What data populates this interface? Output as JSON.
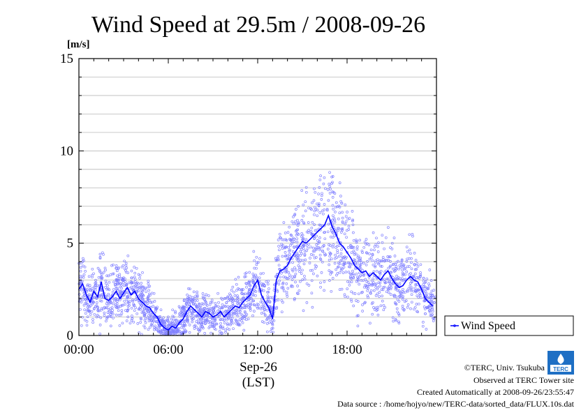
{
  "chart_data": {
    "type": "line",
    "title": "Wind Speed at 29.5m / 2008-09-26",
    "ylabel": "[m/s]",
    "ylim": [
      0,
      15
    ],
    "yticks": [
      0,
      5,
      10,
      15
    ],
    "xlim": [
      0,
      24
    ],
    "xticks": [
      {
        "value": 0,
        "label": "00:00"
      },
      {
        "value": 6,
        "label": "06:00"
      },
      {
        "value": 12,
        "label": "12:00"
      },
      {
        "value": 18,
        "label": "18:00"
      }
    ],
    "date_label": "Sep-26",
    "time_zone_label": "(LST)",
    "grid": true,
    "legend_position": "right",
    "series": [
      {
        "name": "Wind Speed",
        "color": "#0000ff",
        "scatter_color": "#8080ff",
        "x": [
          0.0,
          0.25,
          0.5,
          0.75,
          1.0,
          1.25,
          1.5,
          1.75,
          2.0,
          2.25,
          2.5,
          2.75,
          3.0,
          3.25,
          3.5,
          3.75,
          4.0,
          4.25,
          4.5,
          4.75,
          5.0,
          5.25,
          5.5,
          5.75,
          6.0,
          6.25,
          6.5,
          6.75,
          7.0,
          7.25,
          7.5,
          7.75,
          8.0,
          8.25,
          8.5,
          8.75,
          9.0,
          9.25,
          9.5,
          9.75,
          10.0,
          10.25,
          10.5,
          10.75,
          11.0,
          11.25,
          11.5,
          11.75,
          12.0,
          12.25,
          12.5,
          12.75,
          13.0,
          13.25,
          13.5,
          13.75,
          14.0,
          14.25,
          14.5,
          14.75,
          15.0,
          15.25,
          15.5,
          15.75,
          16.0,
          16.25,
          16.5,
          16.75,
          17.0,
          17.25,
          17.5,
          17.75,
          18.0,
          18.25,
          18.5,
          18.75,
          19.0,
          19.25,
          19.5,
          19.75,
          20.0,
          20.25,
          20.5,
          20.75,
          21.0,
          21.25,
          21.5,
          21.75,
          22.0,
          22.25,
          22.5,
          22.75,
          23.0,
          23.25,
          23.5,
          23.75
        ],
        "y": [
          2.5,
          2.8,
          2.2,
          1.8,
          2.4,
          2.1,
          2.9,
          2.0,
          1.9,
          2.1,
          2.4,
          2.0,
          2.3,
          2.6,
          2.2,
          2.4,
          2.0,
          1.8,
          1.6,
          1.5,
          1.2,
          1.0,
          0.6,
          0.4,
          0.3,
          0.5,
          0.4,
          0.7,
          0.9,
          1.3,
          1.6,
          1.4,
          1.2,
          1.0,
          1.3,
          1.2,
          1.0,
          1.1,
          1.3,
          1.0,
          1.2,
          1.4,
          1.6,
          1.5,
          1.8,
          2.0,
          2.2,
          2.7,
          3.0,
          2.2,
          1.8,
          1.5,
          0.9,
          3.0,
          3.5,
          3.6,
          3.8,
          4.2,
          4.5,
          4.8,
          5.1,
          5.0,
          5.2,
          5.4,
          5.6,
          5.8,
          6.0,
          6.5,
          5.9,
          5.5,
          5.0,
          4.8,
          4.5,
          4.2,
          3.8,
          3.6,
          3.4,
          3.5,
          3.2,
          3.4,
          3.2,
          3.0,
          3.3,
          3.5,
          3.1,
          2.8,
          2.6,
          2.7,
          3.0,
          3.2,
          3.0,
          2.9,
          2.5,
          2.0,
          1.8,
          1.6
        ]
      }
    ]
  },
  "legend": {
    "label": "Wind Speed"
  },
  "footer": {
    "copyright": "©TERC, Univ. Tsukuba",
    "observed": "Observed at TERC Tower site",
    "created": "Created Automatically at 2008-09-26/23:55:47",
    "source": "Data source : /home/hojyo/new/TERC-data/sorted_data/FLUX.10s.dat"
  },
  "logo": {
    "text": "TERC"
  }
}
